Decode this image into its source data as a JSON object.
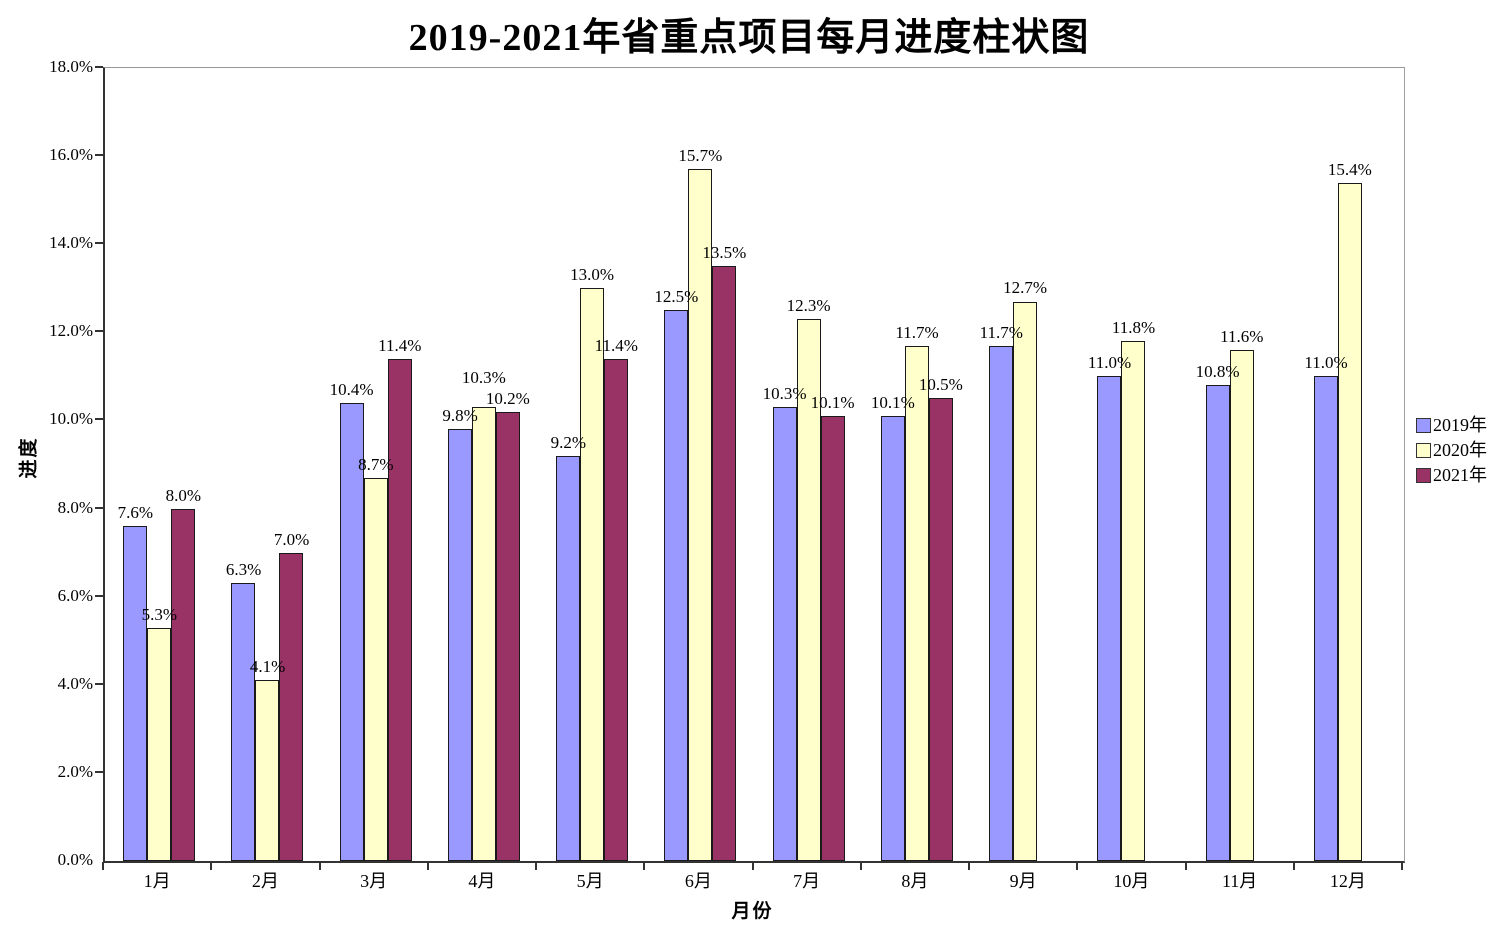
{
  "chart_data": {
    "type": "bar",
    "title": "2019-2021年省重点项目每月进度柱状图",
    "xlabel": "月份",
    "ylabel": "进度",
    "ylim": [
      0,
      18
    ],
    "ytick_step": 2,
    "ytick_labels": [
      "0.0%",
      "2.0%",
      "4.0%",
      "6.0%",
      "8.0%",
      "10.0%",
      "12.0%",
      "14.0%",
      "16.0%",
      "18.0%"
    ],
    "grid": false,
    "legend_position": "right",
    "categories": [
      "1月",
      "2月",
      "3月",
      "4月",
      "5月",
      "6月",
      "7月",
      "8月",
      "9月",
      "10月",
      "11月",
      "12月"
    ],
    "series": [
      {
        "name": "2019年",
        "color": "#9999FF",
        "values": [
          7.6,
          6.3,
          10.4,
          9.8,
          9.2,
          12.5,
          10.3,
          10.1,
          11.7,
          11.0,
          10.8,
          11.0
        ],
        "labels": [
          "7.6%",
          "6.3%",
          "10.4%",
          "9.8%",
          "9.2%",
          "12.5%",
          "10.3%",
          "10.1%",
          "11.7%",
          "11.0%",
          "10.8%",
          "11.0%"
        ]
      },
      {
        "name": "2020年",
        "color": "#FFFFCC",
        "values": [
          5.3,
          4.1,
          8.7,
          10.3,
          13.0,
          15.7,
          12.3,
          11.7,
          12.7,
          11.8,
          11.6,
          15.4
        ],
        "labels": [
          "5.3%",
          "4.1%",
          "8.7%",
          "10.3%",
          "13.0%",
          "15.7%",
          "12.3%",
          "11.7%",
          "12.7%",
          "11.8%",
          "11.6%",
          "15.4%"
        ]
      },
      {
        "name": "2021年",
        "color": "#993366",
        "values": [
          8.0,
          7.0,
          11.4,
          10.2,
          11.4,
          13.5,
          10.1,
          10.5,
          null,
          null,
          null,
          null
        ],
        "labels": [
          "8.0%",
          "7.0%",
          "11.4%",
          "10.2%",
          "11.4%",
          "13.5%",
          "10.1%",
          "10.5%",
          null,
          null,
          null,
          null
        ]
      }
    ]
  }
}
